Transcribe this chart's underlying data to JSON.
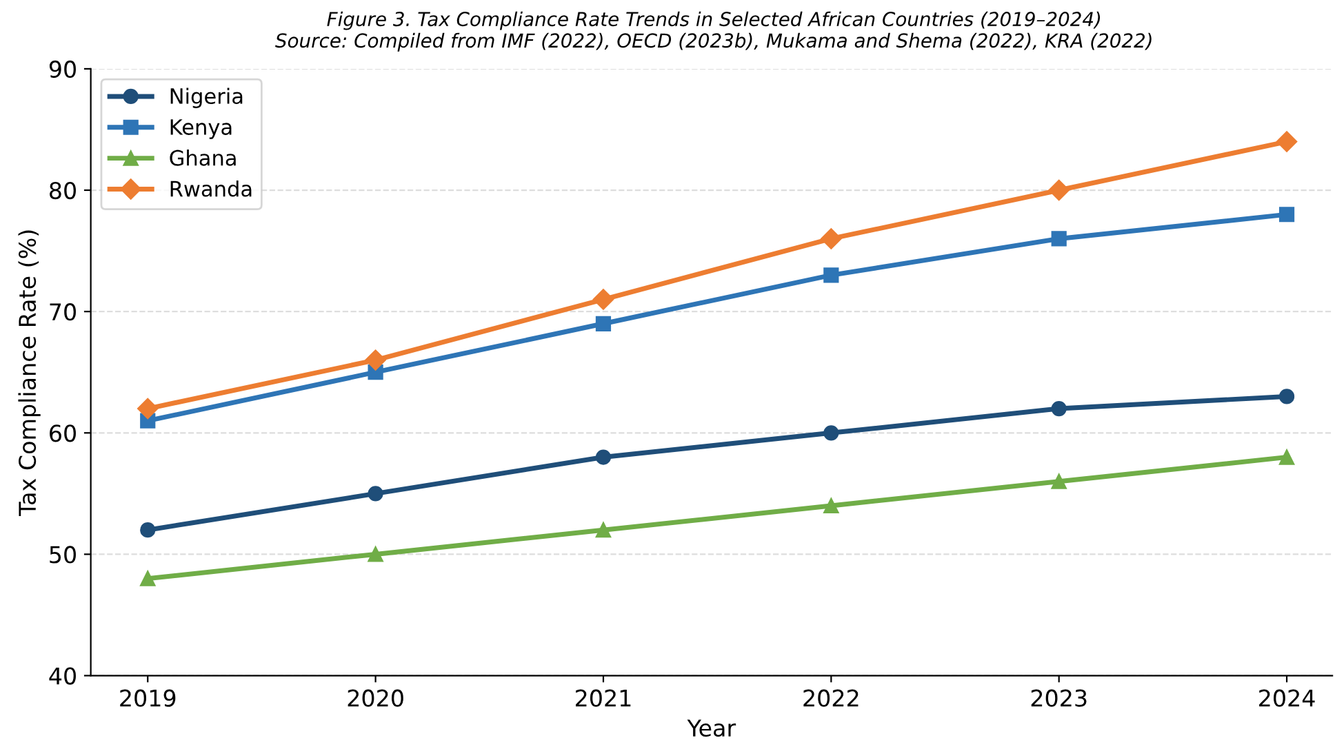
{
  "chart_data": {
    "type": "line",
    "title": "Figure 3. Tax Compliance Rate Trends in Selected African Countries (2019–2024)",
    "annotations": [
      "Source: Compiled from IMF (2022), OECD (2023b), Mukama and Shema (2022), KRA (2022)"
    ],
    "xlabel": "Year",
    "ylabel": "Tax Compliance Rate (%)",
    "categories": [
      "2019",
      "2020",
      "2021",
      "2022",
      "2023",
      "2024"
    ],
    "series": [
      {
        "name": "Nigeria",
        "color": "#1f4e79",
        "marker": "circle",
        "values": [
          52,
          55,
          58,
          60,
          62,
          63
        ]
      },
      {
        "name": "Kenya",
        "color": "#2e75b6",
        "marker": "square",
        "values": [
          61,
          65,
          69,
          73,
          76,
          78
        ]
      },
      {
        "name": "Ghana",
        "color": "#70ad47",
        "marker": "triangle",
        "values": [
          48,
          50,
          52,
          54,
          56,
          58
        ]
      },
      {
        "name": "Rwanda",
        "color": "#ed7d31",
        "marker": "diamond",
        "values": [
          62,
          66,
          71,
          76,
          80,
          84
        ]
      }
    ],
    "ylim": [
      40,
      90
    ],
    "yticks": [
      40,
      50,
      60,
      70,
      80,
      90
    ],
    "grid": "y",
    "legend": "top left",
    "line_style": "solid"
  }
}
